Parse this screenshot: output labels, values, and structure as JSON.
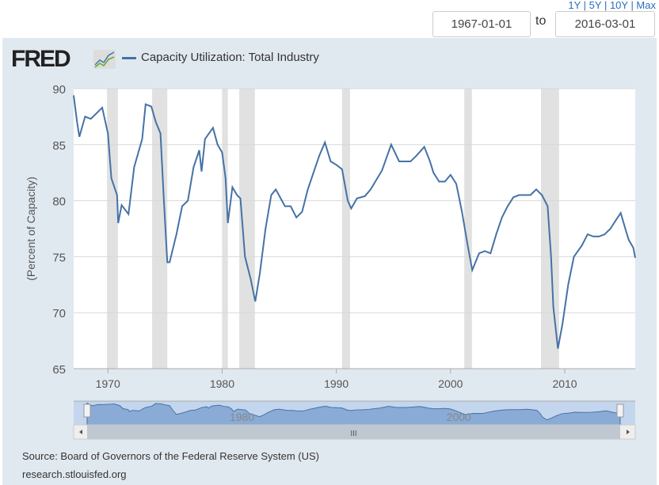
{
  "header": {
    "ranges": "1Y | 5Y | 10Y | Max",
    "start_date": "1967-01-01",
    "to_label": "to",
    "end_date": "2016-03-01"
  },
  "logo": "FRED",
  "source": "Source: Board of Governors of the Federal Reserve System (US)",
  "site": "research.stlouisfed.org",
  "navigator": {
    "labels": [
      "1980",
      "2000"
    ],
    "handle": "III"
  },
  "chart_data": {
    "type": "line",
    "title": "",
    "ylabel": "(Percent of Capacity)",
    "xlim": [
      1967.0,
      2016.17
    ],
    "ylim": [
      65,
      90
    ],
    "yticks": [
      65,
      70,
      75,
      80,
      85,
      90
    ],
    "xticks": [
      1970,
      1980,
      1990,
      2000,
      2010
    ],
    "grid": true,
    "legend_position": "top-left",
    "series": [
      {
        "name": "Capacity Utilization: Total Industry",
        "color": "#4572a7",
        "x": [
          1967.0,
          1967.3,
          1967.5,
          1968,
          1968.5,
          1969,
          1969.5,
          1970,
          1970.3,
          1970.8,
          1970.9,
          1971.2,
          1971.8,
          1972.3,
          1973.0,
          1973.3,
          1973.8,
          1974.2,
          1974.6,
          1974.9,
          1975.2,
          1975.4,
          1976,
          1976.5,
          1977,
          1977.5,
          1978,
          1978.2,
          1978.5,
          1979.2,
          1979.6,
          1980,
          1980.3,
          1980.5,
          1980.9,
          1981.3,
          1981.6,
          1982,
          1982.5,
          1982.9,
          1983.3,
          1983.8,
          1984.3,
          1984.7,
          1985.5,
          1986,
          1986.5,
          1987,
          1987.5,
          1988,
          1988.5,
          1989,
          1989.5,
          1990,
          1990.5,
          1991,
          1991.3,
          1991.8,
          1992.5,
          1993,
          1994,
          1994.8,
          1995.5,
          1996,
          1996.5,
          1997,
          1997.7,
          1998.2,
          1998.5,
          1999,
          1999.5,
          2000,
          2000.5,
          2001,
          2001.5,
          2001.9,
          2002.5,
          2003,
          2003.5,
          2004,
          2004.5,
          2005,
          2005.5,
          2006,
          2006.5,
          2007,
          2007.5,
          2008,
          2008.5,
          2008.8,
          2009.0,
          2009.4,
          2009.8,
          2010.3,
          2010.8,
          2011.5,
          2012,
          2012.5,
          2013,
          2013.5,
          2014,
          2014.5,
          2014.9,
          2015.3,
          2015.6,
          2016.0,
          2016.17
        ],
        "values": [
          89.4,
          87,
          85.7,
          87.5,
          87.3,
          87.8,
          88.3,
          86,
          82,
          80.5,
          78,
          79.6,
          78.8,
          83,
          85.5,
          88.6,
          88.4,
          87,
          86,
          80,
          74.5,
          74.5,
          77,
          79.5,
          80,
          83,
          84.5,
          82.6,
          85.5,
          86.5,
          85,
          84.3,
          82,
          78,
          81.2,
          80.5,
          80.2,
          75,
          73,
          71,
          73.5,
          77.5,
          80.5,
          81,
          79.5,
          79.5,
          78.5,
          79,
          81,
          82.5,
          84,
          85.2,
          83.5,
          83.2,
          82.8,
          80,
          79.3,
          80.2,
          80.4,
          81,
          82.7,
          85,
          83.5,
          83.5,
          83.5,
          84,
          84.8,
          83.5,
          82.5,
          81.7,
          81.7,
          82.3,
          81.5,
          79,
          76,
          73.8,
          75.3,
          75.5,
          75.3,
          77,
          78.5,
          79.5,
          80.3,
          80.5,
          80.5,
          80.5,
          81,
          80.5,
          79.5,
          75,
          70.5,
          66.8,
          69,
          72.5,
          75,
          76,
          77,
          76.8,
          76.8,
          77,
          77.5,
          78.3,
          78.9,
          77.5,
          76.5,
          75.8,
          74.9
        ]
      }
    ],
    "recessions": [
      [
        1969.92,
        1970.87
      ],
      [
        1973.87,
        1975.2
      ],
      [
        1980.0,
        1980.5
      ],
      [
        1981.5,
        1982.87
      ],
      [
        1990.5,
        1991.2
      ],
      [
        2001.2,
        2001.87
      ],
      [
        2007.92,
        2009.5
      ]
    ]
  }
}
